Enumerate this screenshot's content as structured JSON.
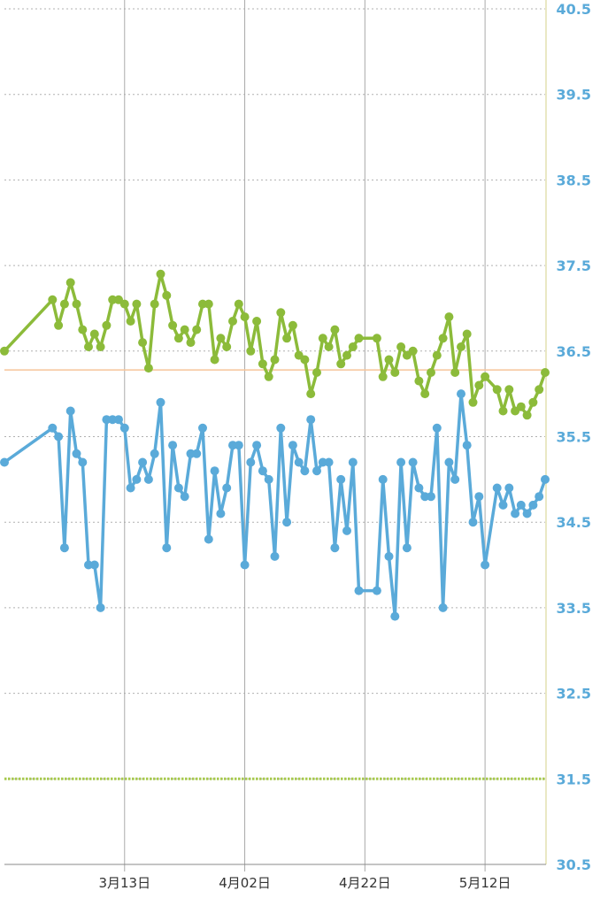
{
  "chart_data": {
    "type": "line",
    "title": "",
    "xlabel": "",
    "ylabel": "",
    "ylim": [
      30.5,
      40.5
    ],
    "y_ticks": [
      "30.5",
      "31.5",
      "32.5",
      "33.5",
      "34.5",
      "35.5",
      "36.5",
      "37.5",
      "38.5",
      "39.5",
      "40.5"
    ],
    "x_ticks": [
      {
        "day": 27,
        "label": "3月13日"
      },
      {
        "day": 47,
        "label": "4月02日"
      },
      {
        "day": 67,
        "label": "4月22日"
      },
      {
        "day": 87,
        "label": "5月12日"
      }
    ],
    "reference_lines": [
      {
        "name": "orange-reference-line",
        "y": 36.28,
        "color": "#f6c59a",
        "style": "solid"
      },
      {
        "name": "green-dotted-reference-line",
        "y": 31.5,
        "color": "#a7c94e",
        "style": "dotted"
      }
    ],
    "grid": true,
    "series": [
      {
        "color": "#8cbb3a",
        "points": [
          [
            7,
            36.5
          ],
          [
            15,
            37.1
          ],
          [
            16,
            36.8
          ],
          [
            17,
            37.05
          ],
          [
            18,
            37.3
          ],
          [
            19,
            37.05
          ],
          [
            20,
            36.75
          ],
          [
            21,
            36.55
          ],
          [
            22,
            36.7
          ],
          [
            23,
            36.55
          ],
          [
            24,
            36.8
          ],
          [
            25,
            37.1
          ],
          [
            26,
            37.1
          ],
          [
            27,
            37.05
          ],
          [
            28,
            36.85
          ],
          [
            29,
            37.05
          ],
          [
            30,
            36.6
          ],
          [
            31,
            36.3
          ],
          [
            32,
            37.05
          ],
          [
            33,
            37.4
          ],
          [
            34,
            37.15
          ],
          [
            35,
            36.8
          ],
          [
            36,
            36.65
          ],
          [
            37,
            36.75
          ],
          [
            38,
            36.6
          ],
          [
            39,
            36.75
          ],
          [
            40,
            37.05
          ],
          [
            41,
            37.05
          ],
          [
            42,
            36.4
          ],
          [
            43,
            36.65
          ],
          [
            44,
            36.55
          ],
          [
            45,
            36.85
          ],
          [
            46,
            37.05
          ],
          [
            47,
            36.9
          ],
          [
            48,
            36.5
          ],
          [
            49,
            36.85
          ],
          [
            50,
            36.35
          ],
          [
            51,
            36.2
          ],
          [
            52,
            36.4
          ],
          [
            53,
            36.95
          ],
          [
            54,
            36.65
          ],
          [
            55,
            36.8
          ],
          [
            56,
            36.45
          ],
          [
            57,
            36.4
          ],
          [
            58,
            36.0
          ],
          [
            59,
            36.25
          ],
          [
            60,
            36.65
          ],
          [
            61,
            36.55
          ],
          [
            62,
            36.75
          ],
          [
            63,
            36.35
          ],
          [
            64,
            36.45
          ],
          [
            65,
            36.55
          ],
          [
            66,
            36.65
          ],
          [
            69,
            36.65
          ],
          [
            70,
            36.2
          ],
          [
            71,
            36.4
          ],
          [
            72,
            36.25
          ],
          [
            73,
            36.55
          ],
          [
            74,
            36.45
          ],
          [
            75,
            36.5
          ],
          [
            76,
            36.15
          ],
          [
            77,
            36.0
          ],
          [
            78,
            36.25
          ],
          [
            79,
            36.45
          ],
          [
            80,
            36.65
          ],
          [
            81,
            36.9
          ],
          [
            82,
            36.25
          ],
          [
            83,
            36.55
          ],
          [
            84,
            36.7
          ],
          [
            85,
            35.9
          ],
          [
            86,
            36.1
          ],
          [
            87,
            36.2
          ],
          [
            89,
            36.05
          ],
          [
            90,
            35.8
          ],
          [
            91,
            36.05
          ],
          [
            92,
            35.8
          ],
          [
            93,
            35.85
          ],
          [
            94,
            35.75
          ],
          [
            95,
            35.9
          ],
          [
            96,
            36.05
          ],
          [
            97,
            36.25
          ]
        ]
      },
      {
        "color": "#5aaad9",
        "points": [
          [
            7,
            35.2
          ],
          [
            15,
            35.6
          ],
          [
            16,
            35.5
          ],
          [
            17,
            34.2
          ],
          [
            18,
            35.8
          ],
          [
            19,
            35.3
          ],
          [
            20,
            35.2
          ],
          [
            21,
            34.0
          ],
          [
            22,
            34.0
          ],
          [
            23,
            33.5
          ],
          [
            24,
            35.7
          ],
          [
            25,
            35.7
          ],
          [
            26,
            35.7
          ],
          [
            27,
            35.6
          ],
          [
            28,
            34.9
          ],
          [
            29,
            35.0
          ],
          [
            30,
            35.2
          ],
          [
            31,
            35.0
          ],
          [
            32,
            35.3
          ],
          [
            33,
            35.9
          ],
          [
            34,
            34.2
          ],
          [
            35,
            35.4
          ],
          [
            36,
            34.9
          ],
          [
            37,
            34.8
          ],
          [
            38,
            35.3
          ],
          [
            39,
            35.3
          ],
          [
            40,
            35.6
          ],
          [
            41,
            34.3
          ],
          [
            42,
            35.1
          ],
          [
            43,
            34.6
          ],
          [
            44,
            34.9
          ],
          [
            45,
            35.4
          ],
          [
            46,
            35.4
          ],
          [
            47,
            34.0
          ],
          [
            48,
            35.2
          ],
          [
            49,
            35.4
          ],
          [
            50,
            35.1
          ],
          [
            51,
            35.0
          ],
          [
            52,
            34.1
          ],
          [
            53,
            35.6
          ],
          [
            54,
            34.5
          ],
          [
            55,
            35.4
          ],
          [
            56,
            35.2
          ],
          [
            57,
            35.1
          ],
          [
            58,
            35.7
          ],
          [
            59,
            35.1
          ],
          [
            60,
            35.2
          ],
          [
            61,
            35.2
          ],
          [
            62,
            34.2
          ],
          [
            63,
            35.0
          ],
          [
            64,
            34.4
          ],
          [
            65,
            35.2
          ],
          [
            66,
            33.7
          ],
          [
            69,
            33.7
          ],
          [
            70,
            35.0
          ],
          [
            71,
            34.1
          ],
          [
            72,
            33.4
          ],
          [
            73,
            35.2
          ],
          [
            74,
            34.2
          ],
          [
            75,
            35.2
          ],
          [
            76,
            34.9
          ],
          [
            77,
            34.8
          ],
          [
            78,
            34.8
          ],
          [
            79,
            35.6
          ],
          [
            80,
            33.5
          ],
          [
            81,
            35.2
          ],
          [
            82,
            35.0
          ],
          [
            83,
            36.0
          ],
          [
            84,
            35.4
          ],
          [
            85,
            34.5
          ],
          [
            86,
            34.8
          ],
          [
            87,
            34.0
          ],
          [
            89,
            34.9
          ],
          [
            90,
            34.7
          ],
          [
            91,
            34.9
          ],
          [
            92,
            34.6
          ],
          [
            93,
            34.7
          ],
          [
            94,
            34.6
          ],
          [
            95,
            34.7
          ],
          [
            96,
            34.8
          ],
          [
            97,
            35.0
          ]
        ]
      }
    ],
    "colors": {
      "axis_label": "#5aaad9",
      "grid_dotted": "#b0b0b0",
      "grid_vertical": "#aaaaaa",
      "right_axis_line": "#e3e0b0",
      "bottom_axis_line": "#888888"
    }
  }
}
